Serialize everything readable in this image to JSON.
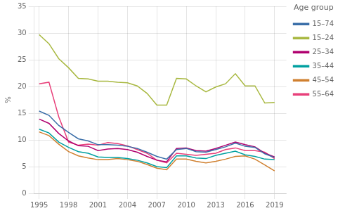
{
  "chart_data": {
    "type": "line",
    "ylabel": "%",
    "legend_title": "Age group",
    "legend": "right",
    "grid": true,
    "x": [
      1995,
      1996,
      1997,
      1998,
      1999,
      2000,
      2001,
      2002,
      2003,
      2004,
      2005,
      2006,
      2007,
      2008,
      2009,
      2010,
      2011,
      2012,
      2013,
      2014,
      2015,
      2016,
      2017,
      2018,
      2019
    ],
    "series": [
      {
        "name": "15–74",
        "color": "#3a6ea8",
        "values": [
          15.4,
          14.6,
          12.7,
          11.4,
          10.2,
          9.8,
          9.1,
          9.1,
          9.0,
          8.8,
          8.4,
          7.7,
          6.9,
          6.4,
          8.2,
          8.4,
          7.8,
          7.7,
          8.2,
          8.7,
          9.4,
          8.8,
          8.6,
          7.4,
          6.7
        ]
      },
      {
        "name": "15–24",
        "color": "#a8b840",
        "values": [
          29.7,
          28.0,
          25.2,
          23.5,
          21.5,
          21.4,
          21.0,
          21.0,
          20.8,
          20.7,
          20.1,
          18.7,
          16.5,
          16.5,
          21.5,
          21.4,
          20.1,
          19.0,
          19.9,
          20.5,
          22.4,
          20.1,
          20.1,
          16.9,
          17.0
        ]
      },
      {
        "name": "25–34",
        "color": "#b0006f",
        "values": [
          13.9,
          13.1,
          11.2,
          9.8,
          8.9,
          8.8,
          8.0,
          8.3,
          8.4,
          8.2,
          7.7,
          6.9,
          6.2,
          5.9,
          8.4,
          8.5,
          8.0,
          7.9,
          8.4,
          9.0,
          9.6,
          9.1,
          8.7,
          7.5,
          6.8
        ]
      },
      {
        "name": "35–44",
        "color": "#00a0a0",
        "values": [
          12.0,
          11.3,
          9.6,
          8.6,
          7.8,
          7.5,
          6.8,
          6.7,
          6.7,
          6.5,
          6.2,
          5.7,
          5.0,
          4.8,
          7.0,
          7.0,
          6.6,
          6.5,
          7.1,
          7.5,
          7.9,
          7.2,
          6.9,
          6.4,
          6.3
        ]
      },
      {
        "name": "45–54",
        "color": "#d08030",
        "values": [
          11.5,
          10.8,
          9.2,
          7.8,
          7.0,
          6.6,
          6.3,
          6.3,
          6.5,
          6.3,
          6.0,
          5.4,
          4.7,
          4.4,
          6.4,
          6.4,
          6.0,
          5.7,
          6.0,
          6.4,
          6.9,
          7.0,
          6.4,
          5.3,
          4.2
        ]
      },
      {
        "name": "55–64",
        "color": "#e8407a",
        "values": [
          20.5,
          20.8,
          14.3,
          9.6,
          9.0,
          9.2,
          9.0,
          9.5,
          9.3,
          8.9,
          8.2,
          7.5,
          6.2,
          5.7,
          7.5,
          7.3,
          7.1,
          7.3,
          7.5,
          8.2,
          8.5,
          8.0,
          8.0,
          7.7,
          6.5
        ]
      }
    ],
    "xlim": [
      1994.5,
      2020.2
    ],
    "ylim": [
      0,
      35
    ],
    "xticks": [
      1995,
      1998,
      2001,
      2004,
      2007,
      2010,
      2013,
      2016,
      2019
    ],
    "yticks": [
      0,
      5,
      10,
      15,
      20,
      25,
      30,
      35
    ]
  }
}
